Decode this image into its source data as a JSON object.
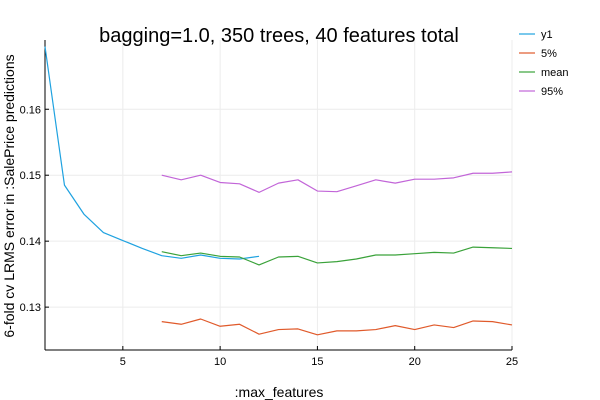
{
  "chart_data": {
    "type": "line",
    "title": "bagging=1.0, 350 trees, 40 features total",
    "xlabel": ":max_features",
    "ylabel": "6-fold cv LRMS error in :SalePrice predictions",
    "xlim": [
      1,
      25
    ],
    "ylim": [
      0.1235,
      0.1705
    ],
    "x_ticks": [
      5,
      10,
      15,
      20,
      25
    ],
    "x_tick_labels": [
      "5",
      "10",
      "15",
      "20",
      "25"
    ],
    "y_ticks": [
      0.13,
      0.14,
      0.15,
      0.16
    ],
    "y_tick_labels": [
      "0.13",
      "0.14",
      "0.15",
      "0.16"
    ],
    "grid": true,
    "legend_position": "top-right outside",
    "series": [
      {
        "name": "y1",
        "color": "#1fa2e0",
        "x": [
          1,
          2,
          3,
          4,
          5,
          6,
          7,
          8,
          9,
          10,
          11,
          12
        ],
        "y": [
          0.1695,
          0.1485,
          0.1441,
          0.1413,
          0.1401,
          0.1389,
          0.1378,
          0.1374,
          0.1379,
          0.1374,
          0.1373,
          0.1377
        ]
      },
      {
        "name": "5%",
        "color": "#e05a2b",
        "x": [
          7,
          8,
          9,
          10,
          11,
          12,
          13,
          14,
          15,
          16,
          17,
          18,
          19,
          20,
          21,
          22,
          23,
          24,
          25
        ],
        "y": [
          0.1278,
          0.1274,
          0.1282,
          0.1271,
          0.1274,
          0.1259,
          0.1266,
          0.1267,
          0.1258,
          0.1264,
          0.1264,
          0.1266,
          0.1272,
          0.1266,
          0.1273,
          0.1269,
          0.1279,
          0.1278,
          0.1273
        ]
      },
      {
        "name": "mean",
        "color": "#3aa23a",
        "x": [
          7,
          8,
          9,
          10,
          11,
          12,
          13,
          14,
          15,
          16,
          17,
          18,
          19,
          20,
          21,
          22,
          23,
          24,
          25
        ],
        "y": [
          0.1384,
          0.1378,
          0.1382,
          0.1377,
          0.1376,
          0.1364,
          0.1376,
          0.1377,
          0.1367,
          0.1369,
          0.1373,
          0.1379,
          0.1379,
          0.1381,
          0.1383,
          0.1382,
          0.1391,
          0.139,
          0.1389
        ]
      },
      {
        "name": "95%",
        "color": "#c265d8",
        "x": [
          7,
          8,
          9,
          10,
          11,
          12,
          13,
          14,
          15,
          16,
          17,
          18,
          19,
          20,
          21,
          22,
          23,
          24,
          25
        ],
        "y": [
          0.15,
          0.1493,
          0.15,
          0.1489,
          0.1487,
          0.1474,
          0.1488,
          0.1493,
          0.1476,
          0.1475,
          0.1484,
          0.1493,
          0.1488,
          0.1494,
          0.1494,
          0.1496,
          0.1503,
          0.1503,
          0.1505
        ]
      }
    ]
  }
}
